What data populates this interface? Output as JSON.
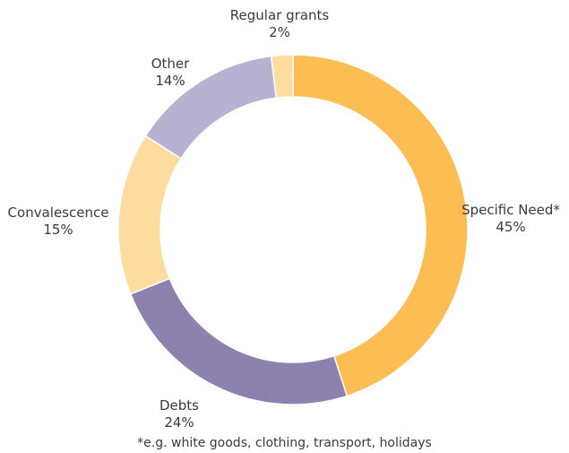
{
  "chart_data": {
    "type": "pie",
    "categories": [
      "Specific Need*",
      "Debts",
      "Convalescence",
      "Other",
      "Regular grants"
    ],
    "values": [
      45,
      24,
      15,
      14,
      2
    ],
    "value_labels": [
      "45%",
      "24%",
      "15%",
      "14%",
      "2%"
    ],
    "colors": [
      "#fcbe52",
      "#8c82ad",
      "#fddca0",
      "#b7b2d1",
      "#fddca0"
    ],
    "donut": true,
    "start": "top, clockwise",
    "footnote": "*e.g. white goods, clothing, transport, holidays"
  }
}
